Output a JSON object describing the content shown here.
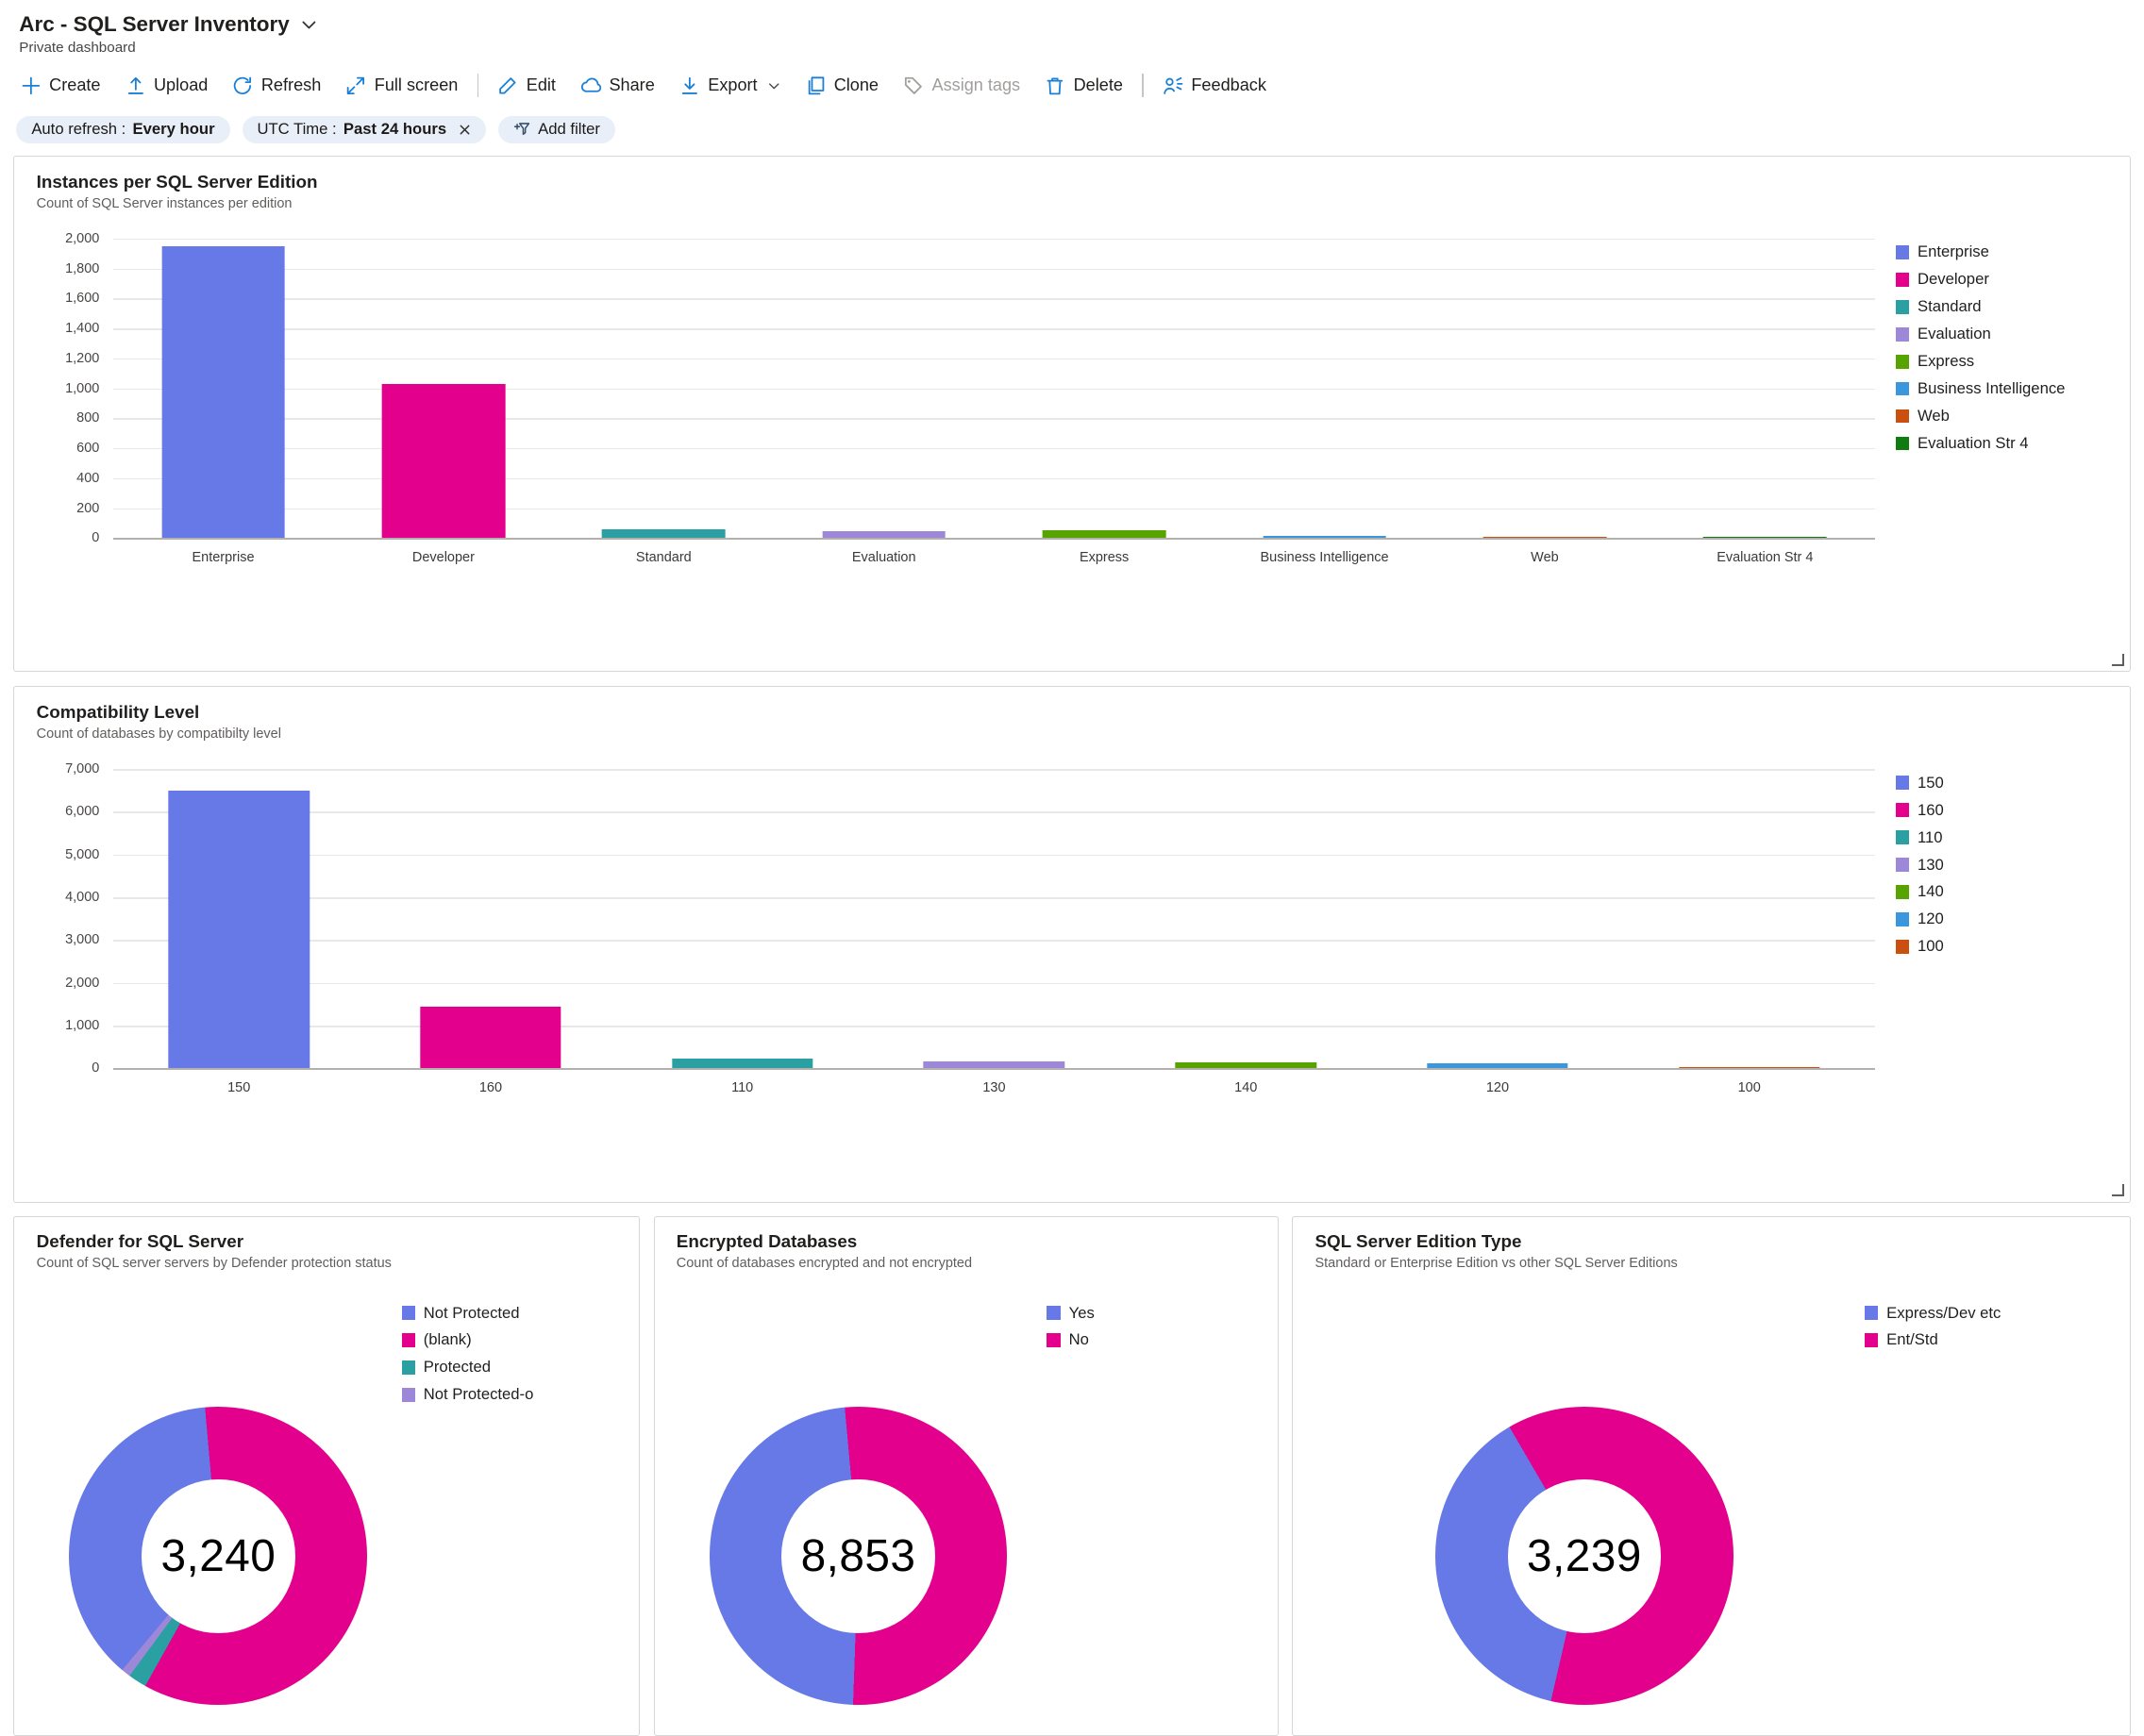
{
  "header": {
    "title": "Arc - SQL Server Inventory",
    "subtitle": "Private dashboard"
  },
  "toolbar": {
    "items": [
      {
        "label": "Create",
        "icon": "plus-icon"
      },
      {
        "label": "Upload",
        "icon": "upload-icon"
      },
      {
        "label": "Refresh",
        "icon": "refresh-icon"
      },
      {
        "label": "Full screen",
        "icon": "fullscreen-icon"
      },
      {
        "label": "Edit",
        "icon": "edit-icon",
        "divider_before": true
      },
      {
        "label": "Share",
        "icon": "share-icon"
      },
      {
        "label": "Export",
        "icon": "export-icon",
        "chevron": true
      },
      {
        "label": "Clone",
        "icon": "clone-icon"
      },
      {
        "label": "Assign tags",
        "icon": "tag-icon",
        "disabled": true
      },
      {
        "label": "Delete",
        "icon": "delete-icon"
      },
      {
        "label": "Feedback",
        "icon": "feedback-icon",
        "divider_before": true
      }
    ]
  },
  "filters": {
    "pills": [
      {
        "name": "auto-refresh",
        "label": "Auto refresh :",
        "value": "Every hour",
        "closable": false
      },
      {
        "name": "utc-time",
        "label": "UTC Time :",
        "value": "Past 24 hours",
        "closable": true
      }
    ],
    "add_filter": {
      "label": "Add filter"
    }
  },
  "chart_data": [
    {
      "type": "bar",
      "title": "Instances per SQL Server Edition",
      "subtitle": "Count of SQL Server instances per edition",
      "categories": [
        "Enterprise",
        "Developer",
        "Standard",
        "Evaluation",
        "Express",
        "Business Intelligence",
        "Web",
        "Evaluation Str 4"
      ],
      "values": [
        1950,
        1030,
        60,
        45,
        50,
        12,
        8,
        6
      ],
      "colors": [
        "#6679e6",
        "#e3008c",
        "#2aa0a2",
        "#9d87d8",
        "#57a300",
        "#3a96dd",
        "#ca5010",
        "#107c10"
      ],
      "legend": [
        "Enterprise",
        "Developer",
        "Standard",
        "Evaluation",
        "Express",
        "Business Intelligence",
        "Web",
        "Evaluation Str 4"
      ],
      "legend_position": "right",
      "grid": true,
      "ylim": [
        0,
        2000
      ],
      "yticks": [
        "2,000",
        "1,800",
        "1,600",
        "1,400",
        "1,200",
        "1,000",
        "800",
        "600",
        "400",
        "200",
        "0"
      ]
    },
    {
      "type": "bar",
      "title": "Compatibility Level",
      "subtitle": "Count of databases by compatibilty level",
      "categories": [
        "150",
        "160",
        "110",
        "130",
        "140",
        "120",
        "100"
      ],
      "values": [
        6500,
        1450,
        230,
        160,
        140,
        110,
        40
      ],
      "colors": [
        "#6679e6",
        "#e3008c",
        "#2aa0a2",
        "#9d87d8",
        "#57a300",
        "#3a96dd",
        "#ca5010"
      ],
      "legend": [
        "150",
        "160",
        "110",
        "130",
        "140",
        "120",
        "100"
      ],
      "legend_position": "right",
      "grid": true,
      "ylim": [
        0,
        7000
      ],
      "yticks": [
        "7,000",
        "6,000",
        "5,000",
        "4,000",
        "3,000",
        "2,000",
        "1,000",
        "0"
      ]
    },
    {
      "type": "pie",
      "title": "Defender for SQL Server",
      "subtitle": "Count of SQL server servers by Defender protection status",
      "total": "3,240",
      "rotation": -140,
      "segments": [
        {
          "label": "Not Protected",
          "percent": 37.5,
          "color": "#6679e6"
        },
        {
          "label": "(blank)",
          "percent": 59.5,
          "color": "#e3008c"
        },
        {
          "label": "Protected",
          "percent": 2,
          "color": "#2aa0a2"
        },
        {
          "label": "Not Protected-o",
          "percent": 1,
          "color": "#9d87d8"
        }
      ]
    },
    {
      "type": "pie",
      "title": "Encrypted Databases",
      "subtitle": "Count of databases encrypted and not encrypted",
      "total": "8,853",
      "rotation": -178,
      "segments": [
        {
          "label": "Yes",
          "percent": 48,
          "color": "#6679e6"
        },
        {
          "label": "No",
          "percent": 52,
          "color": "#e3008c"
        }
      ]
    },
    {
      "type": "pie",
      "title": "SQL Server Edition Type",
      "subtitle": "Standard or Enterprise Edition vs other SQL Server Editions",
      "total": "3,239",
      "rotation": -167,
      "segments": [
        {
          "label": "Express/Dev etc",
          "percent": 38,
          "color": "#6679e6"
        },
        {
          "label": "Ent/Std",
          "percent": 62,
          "color": "#e3008c"
        }
      ]
    }
  ]
}
